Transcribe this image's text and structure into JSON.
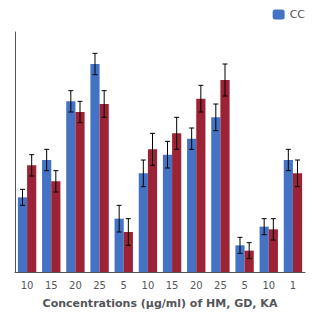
{
  "chart_data": {
    "type": "bar",
    "xlabel": "Concentrations (µg/ml) of HM, GD, KA",
    "categories": [
      "10",
      "15",
      "20",
      "25",
      "5",
      "10",
      "15",
      "20",
      "25",
      "5",
      "10",
      "1"
    ],
    "series": [
      {
        "name": "CC",
        "color": "#4472c4",
        "values": [
          28,
          42,
          64,
          78,
          20,
          37,
          44,
          50,
          58,
          10,
          17,
          42
        ],
        "errors": [
          3,
          4,
          4,
          4,
          5,
          5,
          5,
          4,
          5,
          3,
          3,
          4
        ]
      },
      {
        "color": "#9b2335",
        "values": [
          40,
          34,
          60,
          63,
          15,
          46,
          52,
          65,
          72,
          8,
          16,
          37
        ],
        "errors": [
          4,
          4,
          4,
          5,
          5,
          6,
          6,
          5,
          6,
          3,
          4,
          5
        ]
      }
    ],
    "ylim": [
      0,
      90
    ],
    "yticks": [],
    "tick_labels": "x",
    "grid": false,
    "legend": "upper right"
  }
}
